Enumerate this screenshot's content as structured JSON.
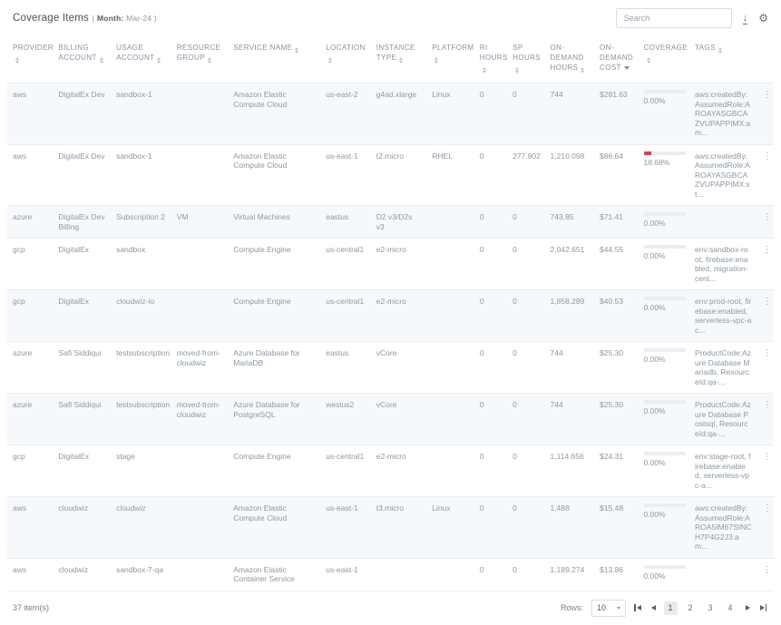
{
  "title": {
    "main": "Coverage Items",
    "paren_open": "(",
    "month_label": "Month:",
    "month_value": "Mar-24",
    "paren_close": ")"
  },
  "toolbar": {
    "search_placeholder": "Search",
    "download_glyph": "↓",
    "settings_glyph": "⚙"
  },
  "icons": {
    "kebab": "⋮"
  },
  "colors": {
    "coverage_fill": "#e8384f",
    "coverage_track": "#ebedf0",
    "row_stripe": "#f6f9fb"
  },
  "table": {
    "columns": [
      {
        "key": "provider",
        "label": "PROVIDER",
        "sort": "both"
      },
      {
        "key": "billing_account",
        "label": "BILLING ACCOUNT",
        "sort": "both"
      },
      {
        "key": "usage_account",
        "label": "USAGE ACCOUNT",
        "sort": "both"
      },
      {
        "key": "resource_group",
        "label": "RESOURCE GROUP",
        "sort": "both"
      },
      {
        "key": "service_name",
        "label": "SERVICE NAME",
        "sort": "both"
      },
      {
        "key": "location",
        "label": "LOCATION",
        "sort": "both"
      },
      {
        "key": "instance_type",
        "label": "INSTANCE TYPE",
        "sort": "both"
      },
      {
        "key": "platform",
        "label": "PLATFORM",
        "sort": "both"
      },
      {
        "key": "ri_hours",
        "label": "RI HOURS",
        "sort": "both"
      },
      {
        "key": "sp_hours",
        "label": "SP HOURS",
        "sort": "both"
      },
      {
        "key": "od_hours",
        "label": "ON-DEMAND HOURS",
        "sort": "both"
      },
      {
        "key": "od_cost",
        "label": "ON-DEMAND COST",
        "sort": "desc"
      },
      {
        "key": "coverage",
        "label": "COVERAGE",
        "sort": "both"
      },
      {
        "key": "tags",
        "label": "TAGS",
        "sort": "both"
      },
      {
        "key": "menu",
        "label": "",
        "sort": "none"
      }
    ],
    "rows": [
      {
        "provider": "aws",
        "billing_account": "DigitalEx Dev",
        "usage_account": "sandbox-1",
        "resource_group": "",
        "service_name": "Amazon Elastic Compute Cloud",
        "location": "us-east-2",
        "instance_type": "g4ad.xlarge",
        "platform": "Linux",
        "ri_hours": "0",
        "sp_hours": "0",
        "od_hours": "744",
        "od_cost": "$281.63",
        "coverage": {
          "display": "0.00%",
          "value": 0
        },
        "tags": "aws:createdBy:AssumedRole:AROAYASGBCAZVUPAPPIMX:am..."
      },
      {
        "provider": "aws",
        "billing_account": "DigitalEx Dev",
        "usage_account": "sandbox-1",
        "resource_group": "",
        "service_name": "Amazon Elastic Compute Cloud",
        "location": "us-east-1",
        "instance_type": "t2.micro",
        "platform": "RHEL",
        "ri_hours": "0",
        "sp_hours": "277.902",
        "od_hours": "1,210.098",
        "od_cost": "$86.64",
        "coverage": {
          "display": "18.68%",
          "value": 18.68
        },
        "tags": "aws:createdBy:AssumedRole:AROAYASGBCAZVUPAPPIMX:st..."
      },
      {
        "provider": "azure",
        "billing_account": "DigitalEx Dev Billing",
        "usage_account": "Subscription 2",
        "resource_group": "VM",
        "service_name": "Virtual Machines",
        "location": "eastus",
        "instance_type": "D2 v3/D2s v3",
        "platform": "",
        "ri_hours": "0",
        "sp_hours": "0",
        "od_hours": "743.85",
        "od_cost": "$71.41",
        "coverage": {
          "display": "0.00%",
          "value": 0
        },
        "tags": ""
      },
      {
        "provider": "gcp",
        "billing_account": "DigitalEx",
        "usage_account": "sandbox",
        "resource_group": "",
        "service_name": "Compute Engine",
        "location": "us-central1",
        "instance_type": "e2-micro",
        "platform": "",
        "ri_hours": "0",
        "sp_hours": "0",
        "od_hours": "2,042.651",
        "od_cost": "$44.55",
        "coverage": {
          "display": "0.00%",
          "value": 0
        },
        "tags": "env:sandbox-root, firebase:enabled, migration-cent..."
      },
      {
        "provider": "gcp",
        "billing_account": "DigitalEx",
        "usage_account": "cloudwiz-io",
        "resource_group": "",
        "service_name": "Compute Engine",
        "location": "us-central1",
        "instance_type": "e2-micro",
        "platform": "",
        "ri_hours": "0",
        "sp_hours": "0",
        "od_hours": "1,858.289",
        "od_cost": "$40.53",
        "coverage": {
          "display": "0.00%",
          "value": 0
        },
        "tags": "env:prod-root, firebase:enabled, serverless-vpc-ac..."
      },
      {
        "provider": "azure",
        "billing_account": "Safi Siddiqui",
        "usage_account": "testsubscription",
        "resource_group": "moved-from-cloudwiz",
        "service_name": "Azure Database for MariaDB",
        "location": "eastus",
        "instance_type": "vCore",
        "platform": "",
        "ri_hours": "0",
        "sp_hours": "0",
        "od_hours": "744",
        "od_cost": "$25.30",
        "coverage": {
          "display": "0.00%",
          "value": 0
        },
        "tags": "ProductCode:Azure Database Mariadb, ResourceId:qa-..."
      },
      {
        "provider": "azure",
        "billing_account": "Safi Siddiqui",
        "usage_account": "testsubscription",
        "resource_group": "moved-from-cloudwiz",
        "service_name": "Azure Database for PostgreSQL",
        "location": "westus2",
        "instance_type": "vCore",
        "platform": "",
        "ri_hours": "0",
        "sp_hours": "0",
        "od_hours": "744",
        "od_cost": "$25.30",
        "coverage": {
          "display": "0.00%",
          "value": 0
        },
        "tags": "ProductCode:Azure Database Postsql, ResourceId:qa-..."
      },
      {
        "provider": "gcp",
        "billing_account": "DigitalEx",
        "usage_account": "stage",
        "resource_group": "",
        "service_name": "Compute Engine",
        "location": "us-central1",
        "instance_type": "e2-micro",
        "platform": "",
        "ri_hours": "0",
        "sp_hours": "0",
        "od_hours": "1,114.656",
        "od_cost": "$24.31",
        "coverage": {
          "display": "0.00%",
          "value": 0
        },
        "tags": "env:stage-root, firebase:enabled, serverless-vpc-a..."
      },
      {
        "provider": "aws",
        "billing_account": "cloudwiz",
        "usage_account": "cloudwiz",
        "resource_group": "",
        "service_name": "Amazon Elastic Compute Cloud",
        "location": "us-east-1",
        "instance_type": "t3.micro",
        "platform": "Linux",
        "ri_hours": "0",
        "sp_hours": "0",
        "od_hours": "1,488",
        "od_cost": "$15.48",
        "coverage": {
          "display": "0.00%",
          "value": 0
        },
        "tags": "aws:createdBy:AssumedRole:AROA5IM67SINCH7P4G2J3:am..."
      },
      {
        "provider": "aws",
        "billing_account": "cloudwiz",
        "usage_account": "sandbox-7-qa",
        "resource_group": "",
        "service_name": "Amazon Elastic Container Service",
        "location": "us-east-1",
        "instance_type": "",
        "platform": "",
        "ri_hours": "0",
        "sp_hours": "0",
        "od_hours": "1,189.274",
        "od_cost": "$13.86",
        "coverage": {
          "display": "0.00%",
          "value": 0
        },
        "tags": ""
      }
    ]
  },
  "footer": {
    "count": "37 item(s)",
    "rows_label": "Rows:",
    "rows_value": "10",
    "pages": [
      "1",
      "2",
      "3",
      "4"
    ],
    "active_page": "1"
  }
}
